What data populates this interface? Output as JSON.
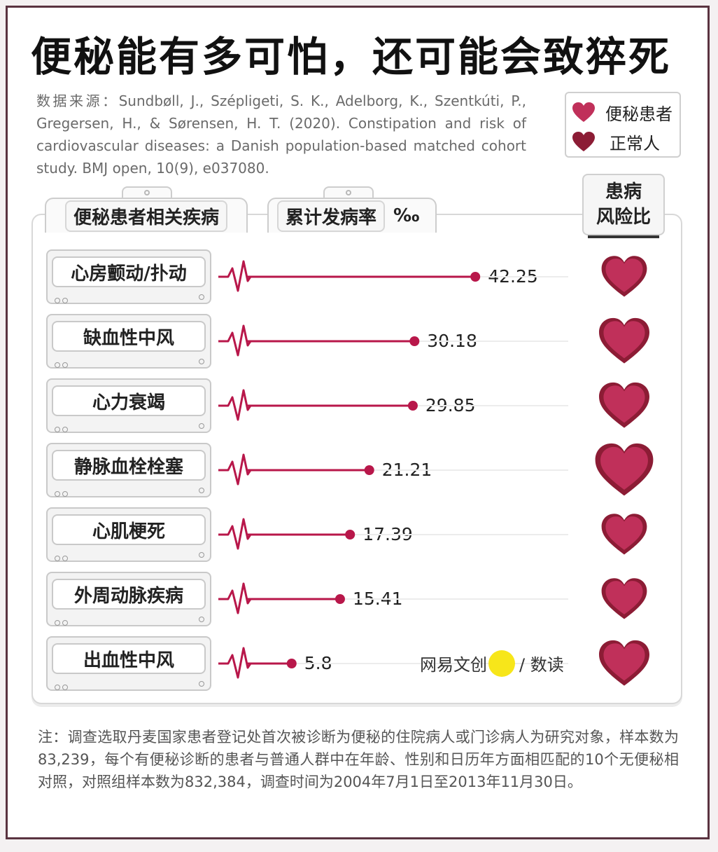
{
  "title": "便秘能有多可怕，还可能会致猝死",
  "source": "数据来源：Sundbøll, J., Szépligeti, S. K., Adelborg, K., Szentkúti, P., Gregersen, H., & Sørensen, H. T. (2020). Constipation and risk of cardiovascular diseases: a Danish population-based matched cohort study. BMJ open, 10(9), e037080.",
  "legend": {
    "patients": "便秘患者",
    "normal": "正常人",
    "patients_color": "#c0305a",
    "normal_color": "#8c1c35"
  },
  "headers": {
    "disease": "便秘患者相关疾病",
    "cumulative": "累计发病率",
    "unit": "‰",
    "risk_line1": "患病",
    "risk_line2": "风险比"
  },
  "chart_data": {
    "type": "bar",
    "categories": [
      "心房颤动/扑动",
      "缺血性中风",
      "心力衰竭",
      "静脉血栓栓塞",
      "心肌梗死",
      "外周动脉疾病",
      "出血性中风"
    ],
    "values": [
      42.25,
      30.18,
      29.85,
      21.21,
      17.39,
      15.41,
      5.8
    ],
    "value_labels": [
      "42.25",
      "30.18",
      "29.85",
      "21.21",
      "17.39",
      "15.41",
      "5.8"
    ],
    "hazard_ratios": [
      "1.27",
      "1.50",
      "1.52",
      "2.04",
      "1.24",
      "1.34",
      "1.46"
    ],
    "xlabel": "累计发病率",
    "unit": "‰",
    "orientation": "horizontal",
    "bar_color": "#b8174a"
  },
  "watermark": {
    "left": "网易文创",
    "right": "/ 数读"
  },
  "note": "注：调查选取丹麦国家患者登记处首次被诊断为便秘的住院病人或门诊病人为研究对象，样本数为83,239，每个有便秘诊断的患者与普通人群中在年龄、性别和日历年方面相匹配的10个无便秘相对照，对照组样本数为832,384，调查时间为2004年7月1日至2013年11月30日。"
}
